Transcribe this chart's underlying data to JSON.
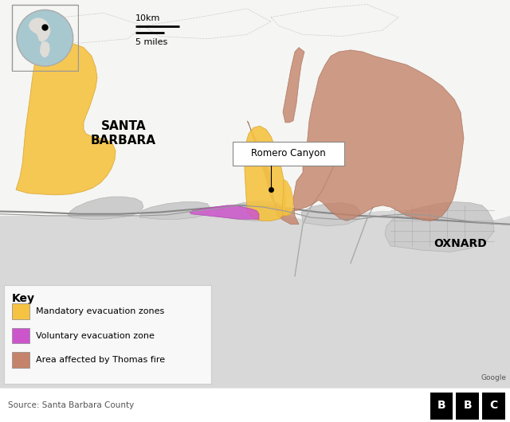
{
  "background_color": "#ffffff",
  "ocean_color": "#d8d8d8",
  "land_color": "#f5f5f3",
  "urban_color": "#cccccc",
  "road_color": "#999999",
  "mandatory_evac_color": "#f5c242",
  "voluntary_evac_color": "#cc55cc",
  "thomas_fire_color": "#c4836a",
  "globe_ocean": "#a8c8d0",
  "globe_land": "#e0ddd8",
  "key_items": [
    {
      "label": "Mandatory evacuation zones",
      "color": "#f5c242"
    },
    {
      "label": "Voluntary evacuation zone",
      "color": "#cc55cc"
    },
    {
      "label": "Area affected by Thomas fire",
      "color": "#c4836a"
    }
  ],
  "source_text": "Source: Santa Barbara County",
  "google_text": "Google"
}
